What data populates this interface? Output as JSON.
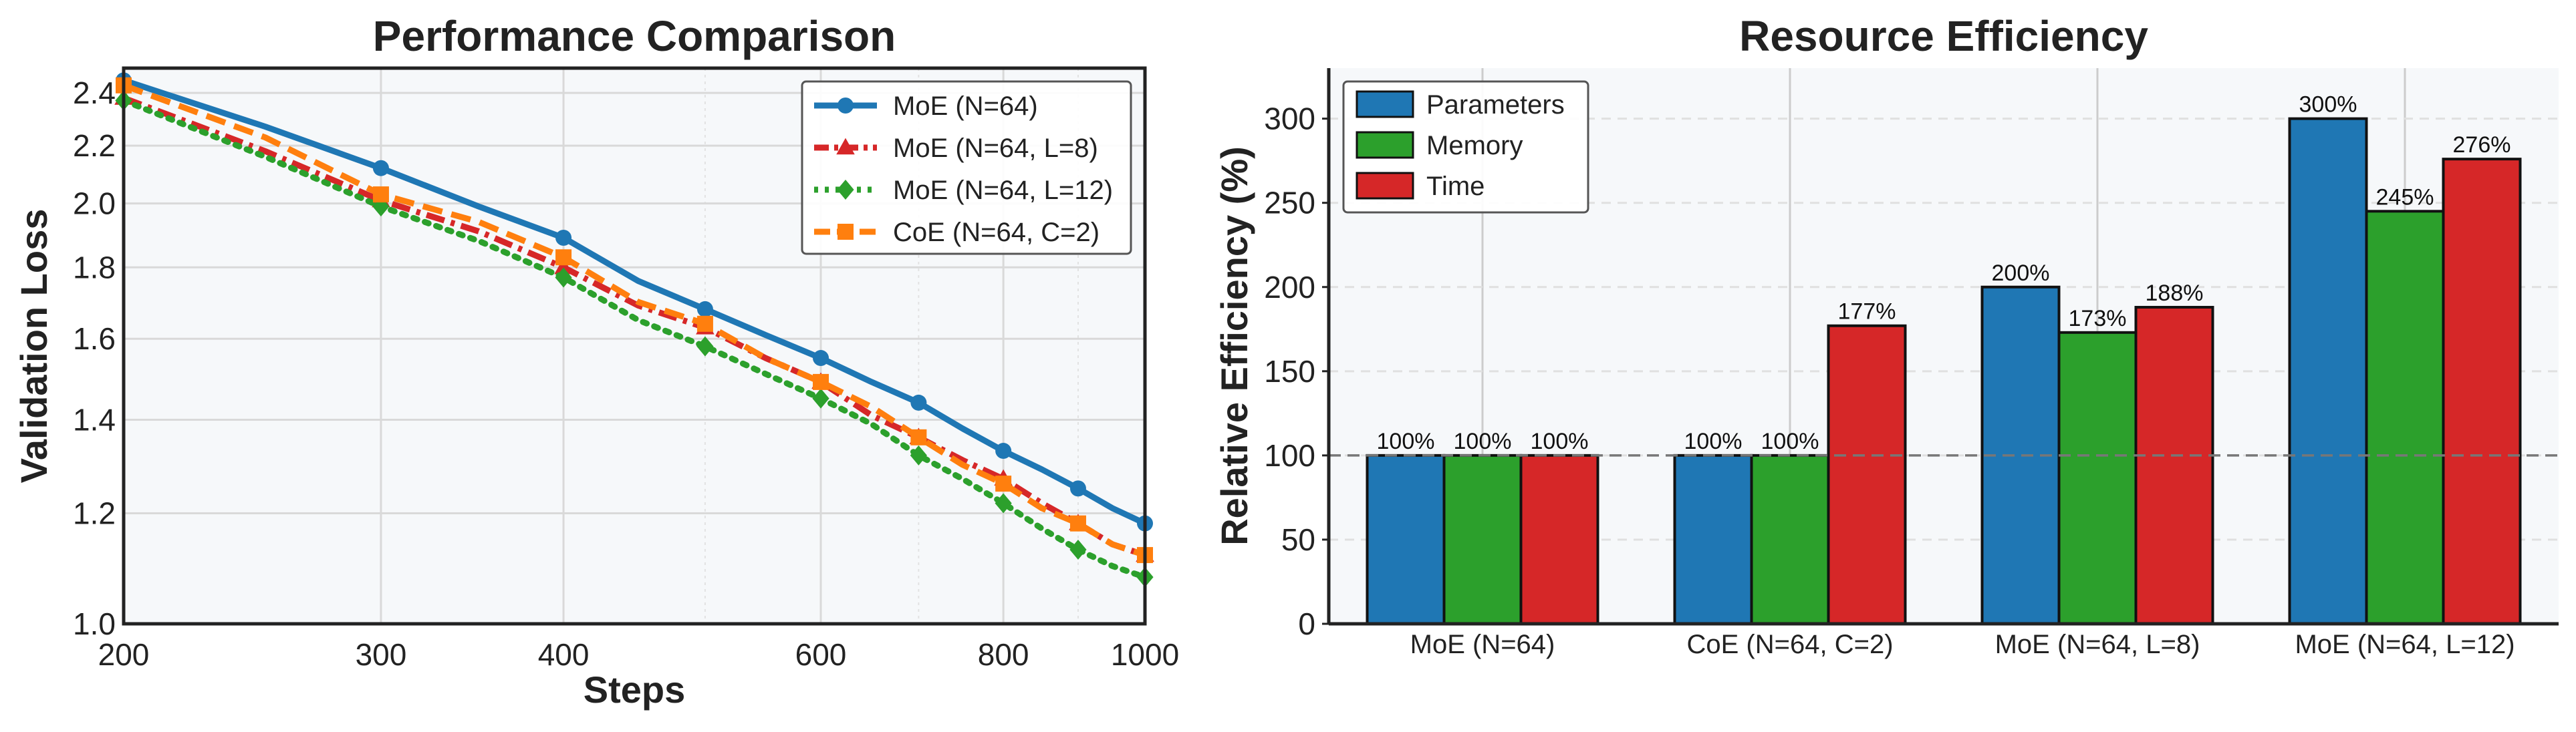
{
  "chart_data": [
    {
      "type": "line",
      "title": "Performance Comparison",
      "xlabel": "Steps",
      "ylabel": "Validation Loss",
      "xscale": "log",
      "yscale": "log",
      "xlim": [
        200,
        1000
      ],
      "ylim": [
        1.0,
        2.5
      ],
      "xticks": [
        200,
        300,
        400,
        600,
        800,
        1000
      ],
      "yticks": [
        1.0,
        1.2,
        1.4,
        1.6,
        1.8,
        2.0,
        2.2,
        2.4
      ],
      "xtick_labels": [
        "200",
        "300",
        "400",
        "600",
        "800",
        "1000"
      ],
      "ytick_labels": [
        "1.0",
        "1.2",
        "1.4",
        "1.6",
        "1.8",
        "2.0",
        "2.2",
        "2.4"
      ],
      "grid": true,
      "legend_position": "top-right",
      "series": [
        {
          "name": "MoE (N=64)",
          "color": "#1f77b4",
          "marker": "circle",
          "linestyle": "solid",
          "x": [
            200,
            250,
            300,
            350,
            400,
            450,
            500,
            550,
            600,
            650,
            700,
            750,
            800,
            850,
            900,
            950,
            1000
          ],
          "y": [
            2.45,
            2.27,
            2.12,
            1.99,
            1.89,
            1.76,
            1.68,
            1.61,
            1.55,
            1.49,
            1.44,
            1.38,
            1.33,
            1.29,
            1.25,
            1.21,
            1.18
          ]
        },
        {
          "name": "MoE (N=64, L=8)",
          "color": "#d62728",
          "marker": "triangle",
          "linestyle": "dashdot",
          "x": [
            200,
            250,
            300,
            350,
            400,
            450,
            500,
            550,
            600,
            650,
            700,
            750,
            800,
            850,
            900,
            950,
            1000
          ],
          "y": [
            2.38,
            2.18,
            2.01,
            1.91,
            1.8,
            1.69,
            1.63,
            1.55,
            1.49,
            1.41,
            1.36,
            1.31,
            1.27,
            1.22,
            1.18,
            1.14,
            1.12
          ]
        },
        {
          "name": "MoE (N=64, L=12)",
          "color": "#2ca02c",
          "marker": "diamond",
          "linestyle": "dotted",
          "x": [
            200,
            250,
            300,
            350,
            400,
            450,
            500,
            550,
            600,
            650,
            700,
            750,
            800,
            850,
            900,
            950,
            1000
          ],
          "y": [
            2.37,
            2.16,
            1.99,
            1.88,
            1.77,
            1.65,
            1.58,
            1.51,
            1.45,
            1.39,
            1.32,
            1.27,
            1.22,
            1.17,
            1.13,
            1.1,
            1.08
          ]
        },
        {
          "name": "CoE (N=64, C=2)",
          "color": "#ff7f0e",
          "marker": "square",
          "linestyle": "dashed",
          "x": [
            200,
            250,
            300,
            350,
            400,
            450,
            500,
            550,
            600,
            650,
            700,
            750,
            800,
            850,
            900,
            950,
            1000
          ],
          "y": [
            2.43,
            2.23,
            2.03,
            1.94,
            1.83,
            1.7,
            1.64,
            1.55,
            1.49,
            1.43,
            1.36,
            1.3,
            1.26,
            1.21,
            1.18,
            1.14,
            1.12
          ]
        }
      ]
    },
    {
      "type": "bar",
      "title": "Resource Efficiency",
      "xlabel": "",
      "ylabel": "Relative Efficiency (%)",
      "ylim": [
        0,
        330
      ],
      "yticks": [
        0,
        50,
        100,
        150,
        200,
        250,
        300
      ],
      "ytick_labels": [
        "0",
        "50",
        "100",
        "150",
        "200",
        "250",
        "300"
      ],
      "reference_line": 100,
      "grid": true,
      "legend_position": "top-left",
      "categories": [
        "MoE (N=64)",
        "CoE (N=64, C=2)",
        "MoE (N=64, L=8)",
        "MoE (N=64, L=12)"
      ],
      "series": [
        {
          "name": "Parameters",
          "color": "#1f77b4",
          "values": [
            100,
            100,
            200,
            300
          ],
          "labels": [
            "100%",
            "100%",
            "200%",
            "300%"
          ]
        },
        {
          "name": "Memory",
          "color": "#2ca02c",
          "values": [
            100,
            100,
            173,
            245
          ],
          "labels": [
            "100%",
            "100%",
            "173%",
            "245%"
          ]
        },
        {
          "name": "Time",
          "color": "#d62728",
          "values": [
            100,
            177,
            188,
            276
          ],
          "labels": [
            "100%",
            "177%",
            "188%",
            "276%"
          ]
        }
      ]
    }
  ]
}
